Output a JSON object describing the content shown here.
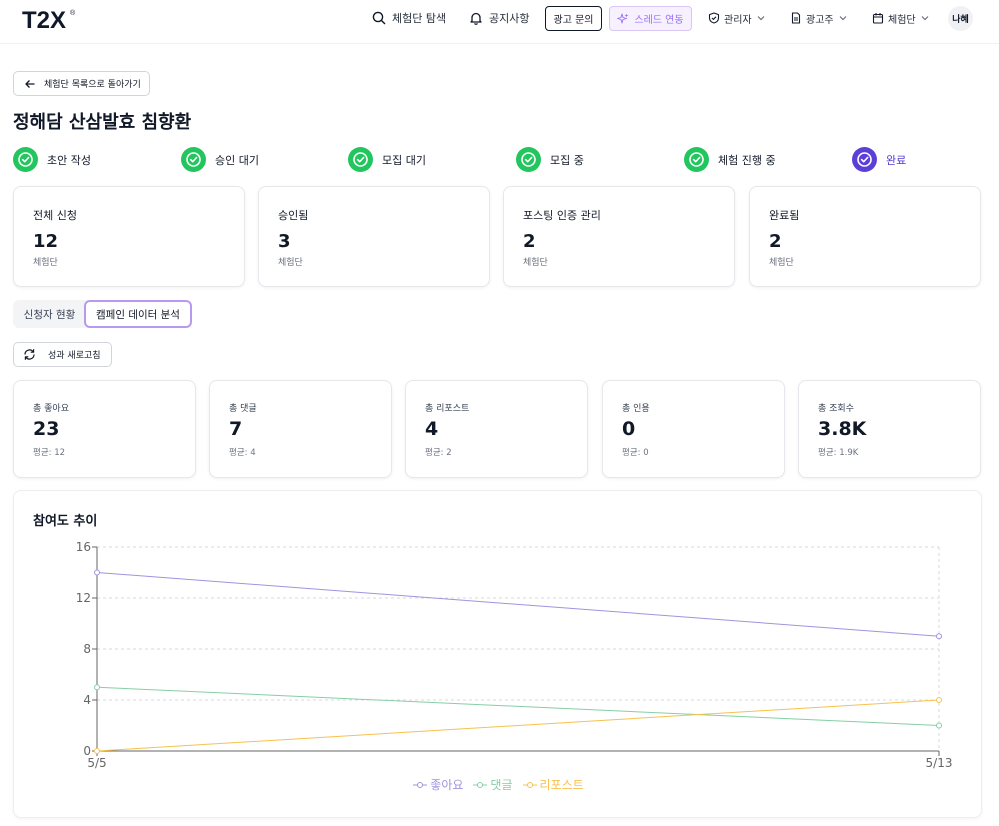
{
  "header": {
    "logo_text": "T2X",
    "logo_mark": "®",
    "nav": {
      "explore": "체험단 탐색",
      "notice": "공지사항",
      "ad_inquiry": "광고 문의",
      "threads_link": "스레드 연동",
      "admin": "관리자",
      "advertiser": "광고주",
      "campaign": "체험단",
      "avatar": "나혜"
    }
  },
  "back_button": "체험단 목록으로 돌아가기",
  "page_title": "정해담 산삼발효 침향환",
  "steps": [
    {
      "label": "초안 작성"
    },
    {
      "label": "승인 대기"
    },
    {
      "label": "모집 대기"
    },
    {
      "label": "모집 중"
    },
    {
      "label": "체험 진행 중"
    },
    {
      "label": "완료"
    }
  ],
  "stats": [
    {
      "label": "전체 신청",
      "value": "12",
      "unit": "체험단"
    },
    {
      "label": "승인됨",
      "value": "3",
      "unit": "체험단"
    },
    {
      "label": "포스팅 인증 관리",
      "value": "2",
      "unit": "체험단"
    },
    {
      "label": "완료됨",
      "value": "2",
      "unit": "체험단"
    }
  ],
  "tabs": [
    {
      "label": "신청자 현황"
    },
    {
      "label": "캠페인 데이터 분석"
    }
  ],
  "refresh_button": "성과 새로고침",
  "metrics": [
    {
      "label": "총 좋아요",
      "value": "23",
      "avg": "평균: 12"
    },
    {
      "label": "총 댓글",
      "value": "7",
      "avg": "평균: 4"
    },
    {
      "label": "총 리포스트",
      "value": "4",
      "avg": "평균: 2"
    },
    {
      "label": "총 인용",
      "value": "0",
      "avg": "평균: 0"
    },
    {
      "label": "총 조회수",
      "value": "3.8K",
      "avg": "평균: 1.9K"
    }
  ],
  "colors": {
    "step_done": "#22c55e",
    "step_active": "#5b3fd6",
    "accent": "#9b6ff0",
    "likes": "#a392de",
    "comments": "#86cfa4",
    "reposts": "#f7c150"
  },
  "chart_data": {
    "type": "line",
    "title": "참여도 추이",
    "x": [
      "5/5",
      "5/13"
    ],
    "y_ticks": [
      0,
      4,
      8,
      12,
      16
    ],
    "ylim": [
      0,
      16
    ],
    "grid": true,
    "legend_position": "bottom-center",
    "series": [
      {
        "name": "좋아요",
        "values": [
          14,
          9
        ],
        "color": "#a392de"
      },
      {
        "name": "댓글",
        "values": [
          5,
          2
        ],
        "color": "#86cfa4"
      },
      {
        "name": "리포스트",
        "values": [
          0,
          4
        ],
        "color": "#f7c150"
      }
    ]
  }
}
